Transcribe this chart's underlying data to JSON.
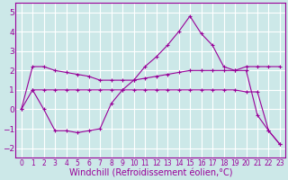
{
  "line1_x": [
    0,
    1,
    2,
    3,
    4,
    5,
    6,
    7,
    8,
    9,
    10,
    11,
    12,
    13,
    14,
    15,
    16,
    17,
    18,
    19,
    20,
    21,
    22,
    23
  ],
  "line1_y": [
    0.0,
    2.2,
    2.2,
    2.0,
    1.9,
    1.8,
    1.7,
    1.5,
    1.5,
    1.5,
    1.5,
    1.6,
    1.7,
    1.8,
    1.9,
    2.0,
    2.0,
    2.0,
    2.0,
    2.0,
    2.2,
    2.2,
    2.2,
    2.2
  ],
  "line2_x": [
    1,
    2,
    3,
    4,
    5,
    6,
    7,
    8,
    9,
    10,
    11,
    12,
    13,
    14,
    15,
    16,
    17,
    18,
    19,
    20,
    21,
    22,
    23
  ],
  "line2_y": [
    1.0,
    1.0,
    1.0,
    1.0,
    1.0,
    1.0,
    1.0,
    1.0,
    1.0,
    1.0,
    1.0,
    1.0,
    1.0,
    1.0,
    1.0,
    1.0,
    1.0,
    1.0,
    1.0,
    0.9,
    0.9,
    -1.1,
    -1.8
  ],
  "line3_x": [
    0,
    1,
    2,
    3,
    4,
    5,
    6,
    7,
    8,
    9,
    10,
    11,
    12,
    13,
    14,
    15,
    16,
    17,
    18,
    19,
    20,
    21,
    22,
    23
  ],
  "line3_y": [
    0.0,
    1.0,
    0.0,
    -1.1,
    -1.1,
    -1.2,
    -1.1,
    -1.0,
    0.3,
    1.0,
    1.5,
    2.2,
    2.7,
    3.3,
    4.0,
    4.8,
    3.9,
    3.3,
    2.2,
    2.0,
    2.0,
    -0.3,
    -1.1,
    -1.8
  ],
  "line_color": "#990099",
  "bg_color": "#cce8e8",
  "grid_color": "#ffffff",
  "xlabel": "Windchill (Refroidissement éolien,°C)",
  "ylim": [
    -2.5,
    5.5
  ],
  "xlim": [
    -0.5,
    23.5
  ],
  "yticks": [
    -2,
    -1,
    0,
    1,
    2,
    3,
    4,
    5
  ],
  "xticks": [
    0,
    1,
    2,
    3,
    4,
    5,
    6,
    7,
    8,
    9,
    10,
    11,
    12,
    13,
    14,
    15,
    16,
    17,
    18,
    19,
    20,
    21,
    22,
    23
  ],
  "tick_fontsize": 5.5,
  "ytick_fontsize": 6.5,
  "xlabel_fontsize": 7.0
}
